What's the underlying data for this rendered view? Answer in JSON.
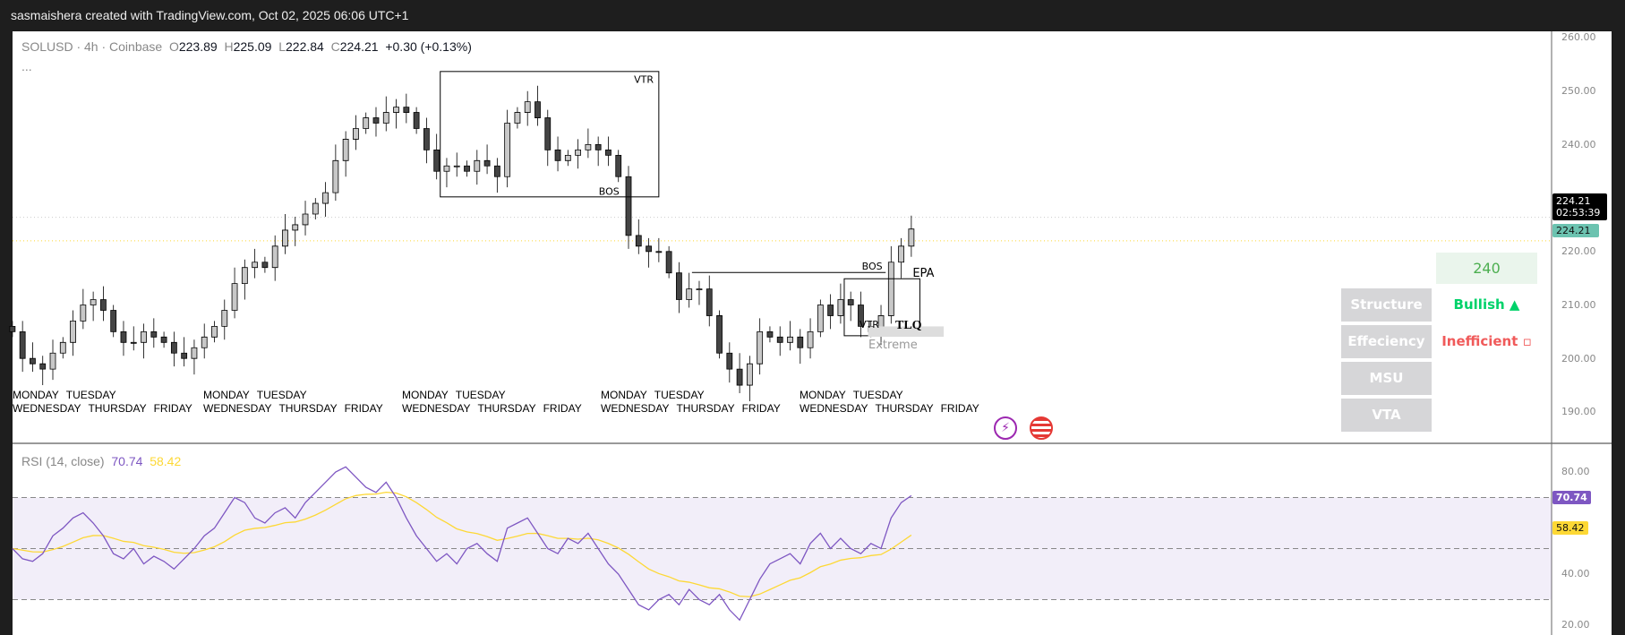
{
  "header": {
    "attribution": "sasmaishera created with TradingView.com, Oct 02, 2025 06:06 UTC+1"
  },
  "legend": {
    "symbol": "SOLUSD · 4h · Coinbase",
    "o_label": "O",
    "o": "223.89",
    "h_label": "H",
    "h": "225.09",
    "l_label": "L",
    "l": "222.84",
    "c_label": "C",
    "c": "224.21",
    "change": "+0.30 (+0.13%)",
    "more": "..."
  },
  "price_axis": {
    "ticks": [
      "260.00",
      "250.00",
      "240.00",
      "220.00",
      "210.00",
      "200.00",
      "190.00"
    ],
    "last_price": "224.21",
    "countdown": "02:53:39",
    "line_price": "224.21"
  },
  "annotations": {
    "vtr1": "VTR",
    "bos1": "BOS",
    "bos2": "BOS",
    "epa": "EPA",
    "vtr2": "VTR",
    "tlq": "TLQ",
    "extreme": "Extreme"
  },
  "day_labels": [
    "MONDAY",
    "TUESDAY",
    "WEDNESDAY",
    "THURSDAY",
    "FRIDAY"
  ],
  "table": {
    "target": "240",
    "rows": [
      {
        "label": "Structure",
        "value": "Bullish ▲",
        "color": "#00d26a"
      },
      {
        "label": "Effeciency",
        "value": "Inefficient ▫",
        "color": "#f05a5a"
      },
      {
        "label": "MSU",
        "value": ""
      },
      {
        "label": "VTA",
        "value": ""
      }
    ]
  },
  "rsi": {
    "title": "RSI (14, close)",
    "value": "70.74",
    "ma_value": "58.42",
    "ticks": [
      "80.00",
      "40.00",
      "20.00"
    ],
    "colors": {
      "rsi": "#7e57c2",
      "ma": "#fdd835"
    }
  },
  "chart_data": {
    "type": "candlestick",
    "symbol": "SOLUSD",
    "interval": "4h",
    "ylim": [
      186,
      262
    ],
    "closes": [
      205,
      200,
      199,
      198,
      201,
      203,
      207,
      210,
      211,
      209,
      205,
      203,
      203,
      205,
      204,
      203,
      201,
      200,
      202,
      204,
      206,
      209,
      214,
      217,
      218,
      217,
      221,
      224,
      225,
      227,
      229,
      231,
      237,
      241,
      243,
      245,
      244,
      246,
      247,
      246,
      243,
      239,
      235,
      236,
      236,
      235,
      237,
      236,
      234,
      244,
      246,
      248,
      245,
      239,
      237,
      238,
      239,
      240,
      239,
      238,
      234,
      223,
      221,
      220,
      220,
      216,
      211,
      213,
      213,
      208,
      201,
      198,
      195,
      199,
      205,
      204,
      203,
      204,
      202,
      205,
      210,
      208,
      211,
      210,
      206,
      205,
      208,
      218,
      221,
      224.21
    ],
    "rsi_values": [
      50,
      46,
      45,
      48,
      55,
      58,
      62,
      64,
      60,
      55,
      48,
      46,
      50,
      44,
      47,
      45,
      42,
      46,
      50,
      55,
      58,
      64,
      70,
      68,
      62,
      60,
      64,
      66,
      62,
      68,
      72,
      76,
      80,
      82,
      78,
      74,
      72,
      76,
      70,
      62,
      55,
      50,
      45,
      48,
      44,
      50,
      52,
      48,
      45,
      58,
      60,
      62,
      56,
      50,
      48,
      54,
      52,
      56,
      50,
      44,
      40,
      34,
      28,
      26,
      30,
      32,
      28,
      34,
      30,
      28,
      32,
      26,
      22,
      30,
      38,
      44,
      46,
      48,
      44,
      52,
      56,
      50,
      54,
      50,
      48,
      52,
      50,
      62,
      68,
      70.74
    ],
    "rsi_levels": [
      70,
      50,
      30
    ],
    "rsi_ylim": [
      15,
      88
    ]
  }
}
